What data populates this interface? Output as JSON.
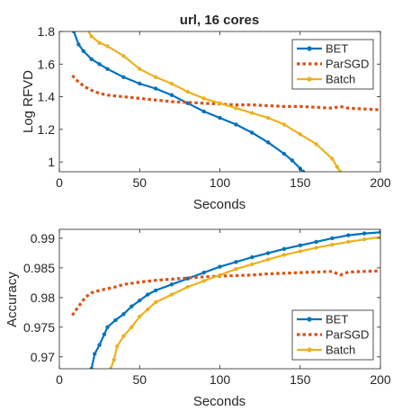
{
  "chart_data": [
    {
      "type": "line",
      "title": "url, 16 cores",
      "xlabel": "Seconds",
      "ylabel": "Log RFVD",
      "xlim": [
        0,
        200
      ],
      "ylim": [
        0.94,
        1.8
      ],
      "xticks": [
        "0",
        "50",
        "100",
        "150",
        "200"
      ],
      "yticks": [
        "1",
        "1.2",
        "1.4",
        "1.6",
        "1.8"
      ],
      "grid": false,
      "legend_position": "top-right",
      "series": [
        {
          "name": "BET",
          "color": "#0072BD",
          "style": "solid-dot",
          "x": [
            7,
            9,
            12,
            15,
            20,
            25,
            30,
            40,
            50,
            60,
            70,
            80,
            90,
            100,
            110,
            120,
            130,
            140,
            145,
            150,
            152
          ],
          "y": [
            1.89,
            1.8,
            1.72,
            1.68,
            1.63,
            1.6,
            1.57,
            1.52,
            1.48,
            1.45,
            1.41,
            1.36,
            1.31,
            1.27,
            1.23,
            1.18,
            1.12,
            1.05,
            1.01,
            0.96,
            0.94
          ]
        },
        {
          "name": "ParSGD",
          "color": "#D95319",
          "style": "dotted",
          "x": [
            8,
            12,
            16,
            20,
            25,
            30,
            40,
            50,
            60,
            70,
            80,
            90,
            100,
            110,
            120,
            130,
            140,
            150,
            160,
            170,
            175,
            180,
            190,
            200
          ],
          "y": [
            1.53,
            1.49,
            1.46,
            1.44,
            1.42,
            1.41,
            1.4,
            1.39,
            1.38,
            1.37,
            1.365,
            1.36,
            1.355,
            1.35,
            1.35,
            1.345,
            1.34,
            1.34,
            1.335,
            1.33,
            1.34,
            1.33,
            1.325,
            1.32
          ]
        },
        {
          "name": "Batch",
          "color": "#EDB120",
          "style": "solid-dot",
          "x": [
            13,
            15,
            20,
            25,
            30,
            40,
            50,
            60,
            70,
            80,
            90,
            100,
            110,
            120,
            130,
            140,
            150,
            160,
            170,
            173,
            175
          ],
          "y": [
            1.91,
            1.85,
            1.77,
            1.73,
            1.71,
            1.65,
            1.57,
            1.52,
            1.48,
            1.43,
            1.39,
            1.36,
            1.33,
            1.3,
            1.27,
            1.23,
            1.17,
            1.11,
            1.02,
            0.97,
            0.94
          ]
        }
      ]
    },
    {
      "type": "line",
      "title": "",
      "xlabel": "Seconds",
      "ylabel": "Accuracy",
      "xlim": [
        0,
        200
      ],
      "ylim": [
        0.968,
        0.9915
      ],
      "xticks": [
        "0",
        "50",
        "100",
        "150",
        "200"
      ],
      "yticks": [
        "0.97",
        "0.975",
        "0.98",
        "0.985",
        "0.99"
      ],
      "grid": false,
      "legend_position": "bottom-right",
      "series": [
        {
          "name": "BET",
          "color": "#0072BD",
          "style": "solid-dot",
          "x": [
            20,
            22,
            25,
            28,
            30,
            35,
            40,
            45,
            50,
            55,
            60,
            70,
            80,
            90,
            100,
            110,
            120,
            130,
            140,
            150,
            160,
            170,
            180,
            190,
            200
          ],
          "y": [
            0.968,
            0.9705,
            0.972,
            0.9738,
            0.975,
            0.9762,
            0.9772,
            0.9785,
            0.9795,
            0.9805,
            0.9812,
            0.9822,
            0.9832,
            0.9842,
            0.9852,
            0.986,
            0.9868,
            0.9875,
            0.9882,
            0.9888,
            0.9894,
            0.99,
            0.9905,
            0.9908,
            0.991
          ]
        },
        {
          "name": "ParSGD",
          "color": "#D95319",
          "style": "dotted",
          "x": [
            8,
            12,
            16,
            20,
            25,
            30,
            35,
            40,
            50,
            60,
            70,
            80,
            90,
            100,
            110,
            120,
            130,
            140,
            150,
            160,
            170,
            175,
            180,
            190,
            200
          ],
          "y": [
            0.977,
            0.9785,
            0.98,
            0.9808,
            0.9812,
            0.9815,
            0.9818,
            0.9822,
            0.9826,
            0.9829,
            0.9831,
            0.9833,
            0.9835,
            0.9836,
            0.9837,
            0.9838,
            0.984,
            0.9841,
            0.9842,
            0.9843,
            0.9844,
            0.9838,
            0.9843,
            0.9844,
            0.9845
          ]
        },
        {
          "name": "Batch",
          "color": "#EDB120",
          "style": "solid-dot",
          "x": [
            32,
            34,
            36,
            40,
            45,
            50,
            55,
            60,
            70,
            80,
            90,
            100,
            110,
            120,
            130,
            140,
            150,
            160,
            170,
            180,
            190,
            200
          ],
          "y": [
            0.968,
            0.9695,
            0.9718,
            0.9735,
            0.975,
            0.9768,
            0.978,
            0.9792,
            0.9805,
            0.9818,
            0.9828,
            0.9838,
            0.9848,
            0.9856,
            0.9864,
            0.9872,
            0.9878,
            0.9884,
            0.9889,
            0.9894,
            0.9898,
            0.9902
          ]
        }
      ]
    }
  ]
}
